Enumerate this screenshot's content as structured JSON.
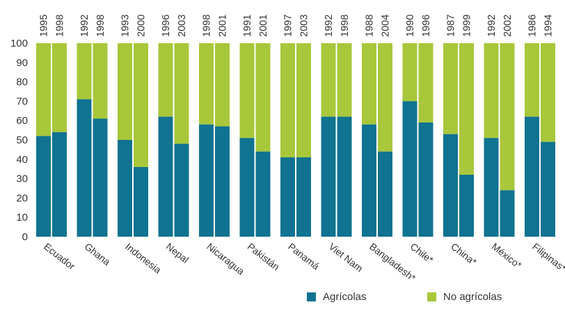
{
  "chart_data": {
    "type": "bar",
    "stacked": true,
    "ylim": [
      0,
      100
    ],
    "yticks": [
      0,
      10,
      20,
      30,
      40,
      50,
      60,
      70,
      80,
      90,
      100
    ],
    "grid": false,
    "legend_position": "bottom-right",
    "colors": {
      "agricolas": "#0f7391",
      "no_agricolas": "#a8c73a"
    },
    "groups": [
      {
        "country": "Ecuador",
        "years": [
          "1995",
          "1998"
        ],
        "agricolas": [
          52,
          54
        ]
      },
      {
        "country": "Ghana",
        "years": [
          "1992",
          "1998"
        ],
        "agricolas": [
          71,
          61
        ]
      },
      {
        "country": "Indonesia",
        "years": [
          "1993",
          "2000"
        ],
        "agricolas": [
          50,
          36
        ]
      },
      {
        "country": "Nepal",
        "years": [
          "1996",
          "2003"
        ],
        "agricolas": [
          62,
          48
        ]
      },
      {
        "country": "Nicaragua",
        "years": [
          "1998",
          "2001"
        ],
        "agricolas": [
          58,
          57
        ]
      },
      {
        "country": "Pakistán",
        "years": [
          "1991",
          "2001"
        ],
        "agricolas": [
          51,
          44
        ]
      },
      {
        "country": "Panamá",
        "years": [
          "1997",
          "2003"
        ],
        "agricolas": [
          41,
          41
        ]
      },
      {
        "country": "Viet Nam",
        "years": [
          "1992",
          "1998"
        ],
        "agricolas": [
          62,
          62
        ]
      },
      {
        "country": "Bangladesh*",
        "years": [
          "1988",
          "2004"
        ],
        "agricolas": [
          58,
          44
        ]
      },
      {
        "country": "Chile*",
        "years": [
          "1990",
          "1996"
        ],
        "agricolas": [
          70,
          59
        ]
      },
      {
        "country": "China*",
        "years": [
          "1987",
          "1999"
        ],
        "agricolas": [
          53,
          32
        ]
      },
      {
        "country": "México*",
        "years": [
          "1992",
          "2002"
        ],
        "agricolas": [
          51,
          24
        ]
      },
      {
        "country": "Filipinas*",
        "years": [
          "1986",
          "1994"
        ],
        "agricolas": [
          62,
          49
        ]
      }
    ],
    "series": [
      {
        "name": "Agrícolas",
        "key": "agricolas"
      },
      {
        "name": "No agrícolas",
        "key": "no_agricolas"
      }
    ]
  },
  "legend": {
    "agricolas_label": "Agrícolas",
    "no_agricolas_label": "No agrícolas"
  }
}
